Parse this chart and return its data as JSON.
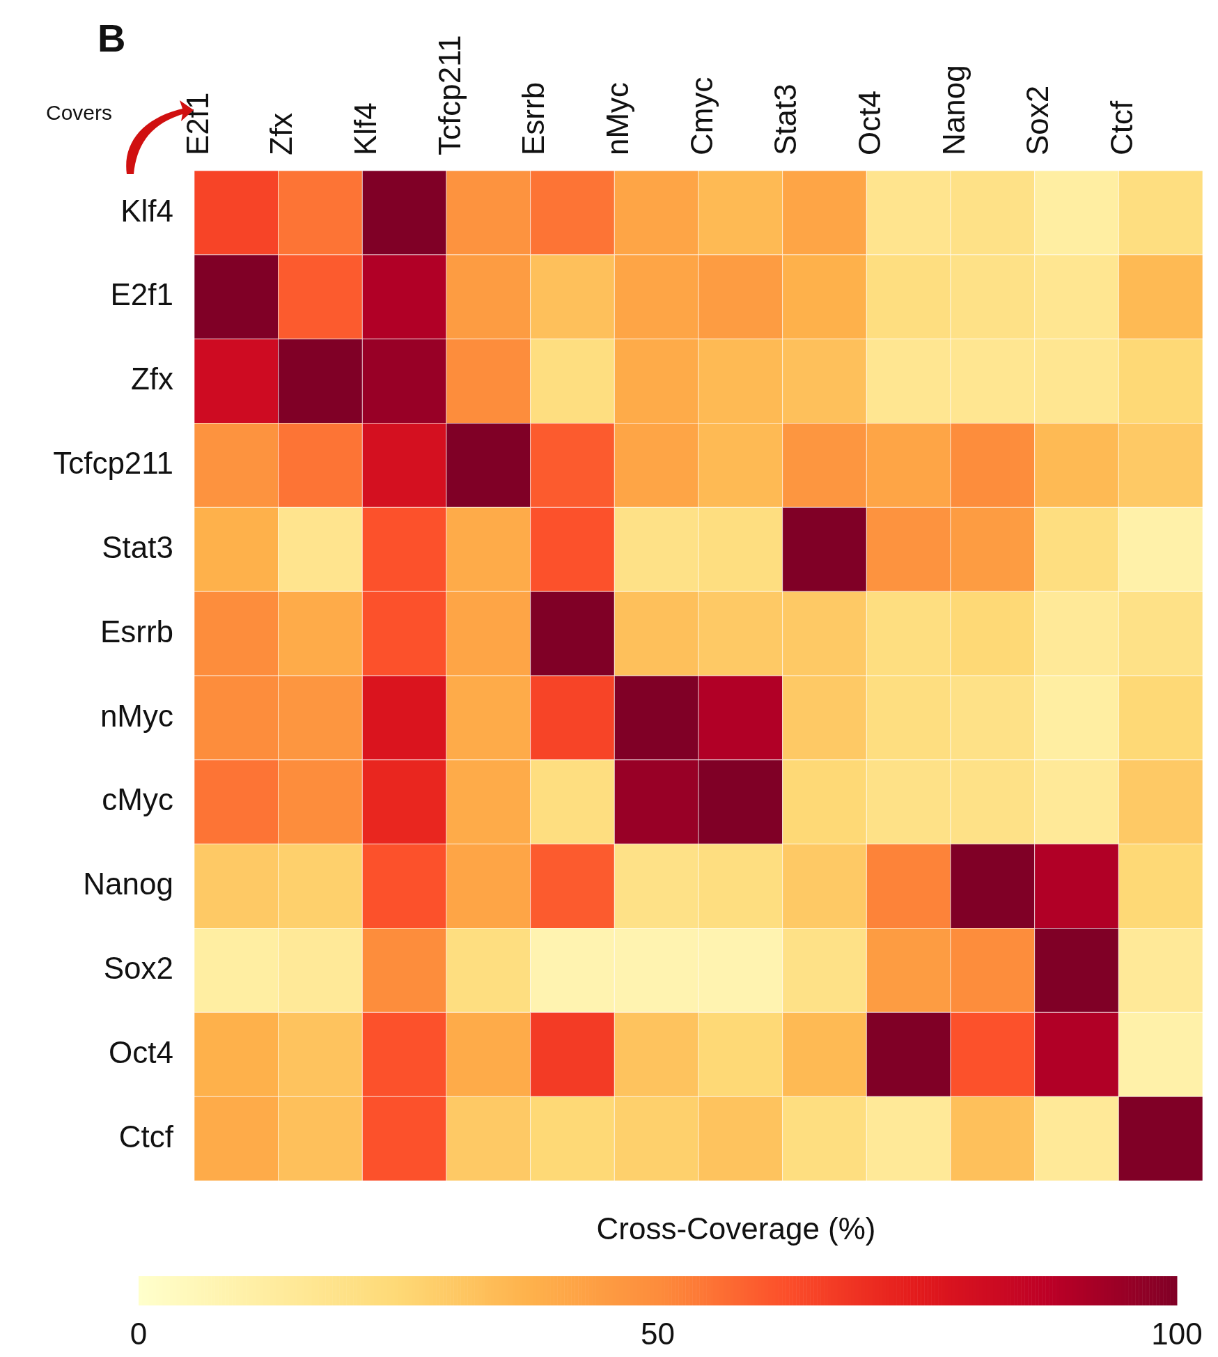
{
  "chart_data": {
    "type": "heatmap",
    "title": "B",
    "annotations": [
      "Covers"
    ],
    "clabel": "Cross-Coverage (%)",
    "categories": [
      "E2f1",
      "Zfx",
      "Klf4",
      "Tcfcp211",
      "Esrrb",
      "nMyc",
      "Cmyc",
      "Stat3",
      "Oct4",
      "Nanog",
      "Sox2",
      "Ctcf"
    ],
    "y_categories": [
      "Klf4",
      "E2f1",
      "Zfx",
      "Tcfcp211",
      "Stat3",
      "Esrrb",
      "nMyc",
      "cMyc",
      "Nanog",
      "Sox2",
      "Oct4",
      "Ctcf"
    ],
    "cells": [
      [
        65,
        55,
        100,
        48,
        55,
        42,
        35,
        42,
        18,
        20,
        12,
        22
      ],
      [
        100,
        60,
        90,
        45,
        33,
        42,
        45,
        38,
        22,
        20,
        17,
        35
      ],
      [
        82,
        100,
        95,
        50,
        22,
        40,
        35,
        33,
        17,
        17,
        17,
        25
      ],
      [
        48,
        55,
        80,
        100,
        60,
        42,
        35,
        47,
        42,
        50,
        35,
        30
      ],
      [
        38,
        18,
        62,
        40,
        62,
        20,
        22,
        100,
        48,
        45,
        22,
        10
      ],
      [
        50,
        40,
        62,
        42,
        100,
        33,
        30,
        30,
        22,
        25,
        15,
        20
      ],
      [
        50,
        47,
        78,
        40,
        65,
        100,
        90,
        30,
        22,
        20,
        12,
        25
      ],
      [
        55,
        50,
        72,
        40,
        22,
        95,
        100,
        25,
        20,
        20,
        15,
        30
      ],
      [
        30,
        28,
        62,
        42,
        60,
        20,
        22,
        30,
        52,
        100,
        90,
        25
      ],
      [
        12,
        15,
        50,
        22,
        8,
        8,
        8,
        20,
        45,
        50,
        100,
        15
      ],
      [
        38,
        32,
        62,
        40,
        67,
        32,
        25,
        35,
        100,
        62,
        90,
        10
      ],
      [
        40,
        33,
        62,
        30,
        25,
        28,
        32,
        22,
        15,
        33,
        15,
        100
      ]
    ],
    "clim": [
      0,
      100
    ],
    "cticks": [
      0,
      50,
      100
    ]
  }
}
